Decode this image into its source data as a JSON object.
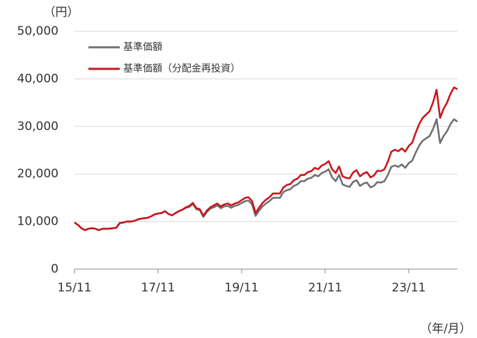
{
  "chart_data": {
    "type": "line",
    "y_unit_label": "（円）",
    "x_unit_label": "（年/月）",
    "x": [
      "15/11",
      "15/12",
      "16/01",
      "16/02",
      "16/03",
      "16/04",
      "16/05",
      "16/06",
      "16/07",
      "16/08",
      "16/09",
      "16/10",
      "16/11",
      "16/12",
      "17/01",
      "17/02",
      "17/03",
      "17/04",
      "17/05",
      "17/06",
      "17/07",
      "17/08",
      "17/09",
      "17/10",
      "17/11",
      "17/12",
      "18/01",
      "18/02",
      "18/03",
      "18/04",
      "18/05",
      "18/06",
      "18/07",
      "18/08",
      "18/09",
      "18/10",
      "18/11",
      "18/12",
      "19/01",
      "19/02",
      "19/03",
      "19/04",
      "19/05",
      "19/06",
      "19/07",
      "19/08",
      "19/09",
      "19/10",
      "19/11",
      "19/12",
      "20/01",
      "20/02",
      "20/03",
      "20/04",
      "20/05",
      "20/06",
      "20/07",
      "20/08",
      "20/09",
      "20/10",
      "20/11",
      "20/12",
      "21/01",
      "21/02",
      "21/03",
      "21/04",
      "21/05",
      "21/06",
      "21/07",
      "21/08",
      "21/09",
      "21/10",
      "21/11",
      "21/12",
      "22/01",
      "22/02",
      "22/03",
      "22/04",
      "22/05",
      "22/06",
      "22/07",
      "22/08",
      "22/09",
      "22/10",
      "22/11",
      "22/12",
      "23/01",
      "23/02",
      "23/03",
      "23/04",
      "23/05",
      "23/06",
      "23/07",
      "23/08",
      "23/09",
      "23/10",
      "23/11",
      "23/12",
      "24/01",
      "24/02",
      "24/03",
      "24/04",
      "24/05",
      "24/06",
      "24/07",
      "24/08",
      "24/09",
      "24/10",
      "24/11",
      "24/12",
      "25/01"
    ],
    "xticks": [
      "15/11",
      "17/11",
      "19/11",
      "21/11",
      "23/11"
    ],
    "ylim": [
      0,
      50000
    ],
    "yticks": [
      0,
      {
        "value": 10000,
        "label": "10,000"
      },
      {
        "value": 20000,
        "label": "20,000"
      },
      {
        "value": 30000,
        "label": "30,000"
      },
      {
        "value": 40000,
        "label": "40,000"
      },
      {
        "value": 50000,
        "label": "50,000"
      }
    ],
    "grid": true,
    "legend": "upper left",
    "series": [
      {
        "name": "基準価額",
        "color": "#707070",
        "values": [
          9800,
          9300,
          8600,
          8200,
          8500,
          8600,
          8500,
          8200,
          8500,
          8500,
          8500,
          8600,
          8700,
          9700,
          9800,
          10000,
          10000,
          10100,
          10400,
          10600,
          10700,
          10800,
          11100,
          11500,
          11700,
          11800,
          12200,
          11600,
          11300,
          11800,
          12200,
          12500,
          12900,
          13100,
          13700,
          12600,
          12400,
          11000,
          12000,
          12700,
          13000,
          13400,
          12800,
          13200,
          13300,
          12900,
          13300,
          13500,
          13900,
          14300,
          14400,
          13600,
          11200,
          12300,
          13200,
          13800,
          14300,
          15000,
          15000,
          15000,
          16200,
          16600,
          16800,
          17500,
          17800,
          18500,
          18500,
          19000,
          19200,
          19800,
          19500,
          20200,
          20500,
          21000,
          19300,
          18500,
          19800,
          17800,
          17500,
          17300,
          18300,
          18700,
          17500,
          18000,
          18200,
          17200,
          17500,
          18300,
          18200,
          18500,
          19800,
          21500,
          21800,
          21500,
          22000,
          21300,
          22300,
          22800,
          24500,
          26000,
          27000,
          27500,
          28000,
          29500,
          31500,
          26500,
          28000,
          29000,
          30500,
          31500,
          31000
        ]
      },
      {
        "name": "基準価額（分配金再投資）",
        "color": "#c8161d",
        "values": [
          9800,
          9300,
          8600,
          8200,
          8500,
          8600,
          8500,
          8200,
          8500,
          8500,
          8500,
          8600,
          8700,
          9700,
          9800,
          10000,
          10000,
          10100,
          10400,
          10600,
          10700,
          10800,
          11100,
          11500,
          11700,
          11800,
          12200,
          11600,
          11300,
          11800,
          12200,
          12500,
          13000,
          13300,
          13900,
          12800,
          12600,
          11200,
          12300,
          13000,
          13400,
          13800,
          13200,
          13600,
          13800,
          13400,
          13800,
          14000,
          14500,
          15000,
          15100,
          14300,
          11800,
          12900,
          13900,
          14600,
          15100,
          15900,
          15900,
          15900,
          17200,
          17700,
          17900,
          18700,
          19000,
          19800,
          19800,
          20400,
          20600,
          21300,
          21000,
          21800,
          22100,
          22700,
          21000,
          20200,
          21600,
          19500,
          19200,
          19100,
          20300,
          20800,
          19500,
          20100,
          20400,
          19300,
          19700,
          20700,
          20600,
          21000,
          22600,
          24700,
          25100,
          24800,
          25400,
          24700,
          25900,
          26600,
          28700,
          30500,
          31800,
          32500,
          33200,
          35100,
          37700,
          31800,
          33700,
          35000,
          36900,
          38200,
          37800
        ]
      }
    ]
  }
}
